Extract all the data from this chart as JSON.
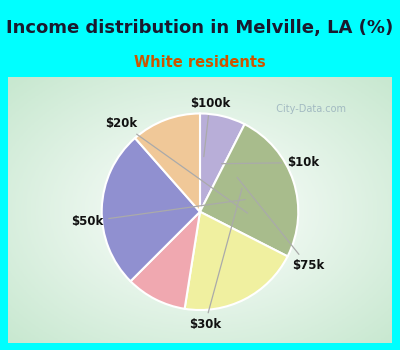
{
  "title": "Income distribution in Melville, LA (%)",
  "subtitle": "White residents",
  "title_color": "#1a1a2e",
  "subtitle_color": "#cc5500",
  "background_cyan": "#00ffff",
  "background_box": "#e8f5ee",
  "labels": [
    "$100k",
    "$10k",
    "$75k",
    "$30k",
    "$50k",
    "$20k"
  ],
  "values": [
    7.5,
    25,
    20,
    10,
    26,
    11.5
  ],
  "colors": [
    "#b8aed8",
    "#a8bc8c",
    "#f0f0a0",
    "#f0a8b0",
    "#9090d0",
    "#f0c898"
  ],
  "start_angle": 90,
  "label_fontsize": 8.5,
  "title_fontsize": 13,
  "subtitle_fontsize": 10.5,
  "watermark": "  City-Data.com"
}
